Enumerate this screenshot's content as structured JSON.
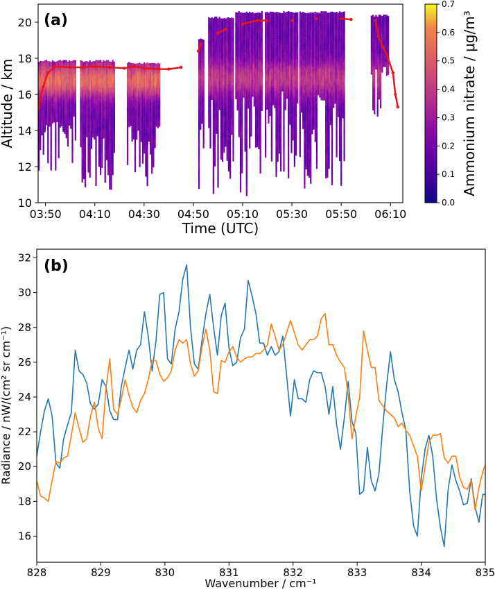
{
  "chart_data": [
    {
      "type": "heatmap",
      "panel_label": "(a)",
      "xlabel": "Time (UTC)",
      "ylabel": "Altitude / km",
      "colorbar_label": "Ammonium nitrate / μg/m³",
      "colormap": "plasma",
      "x_tick_labels": [
        "03:50",
        "04:10",
        "04:30",
        "04:50",
        "05:10",
        "05:30",
        "05:50",
        "06:10"
      ],
      "x_tick_minutes": [
        230,
        250,
        270,
        290,
        310,
        330,
        350,
        370
      ],
      "xlim_minutes": [
        227,
        375
      ],
      "ylim": [
        10,
        21
      ],
      "y_ticks": [
        10,
        12,
        14,
        16,
        18,
        20
      ],
      "colorbar_ticks": [
        0.0,
        0.1,
        0.2,
        0.3,
        0.4,
        0.5,
        0.6,
        0.7
      ],
      "colorbar_range": [
        0,
        0.7
      ],
      "flight_altitude_color": "#e8151b",
      "data_segments": [
        {
          "start": "03:47",
          "end": "04:02",
          "top_km": 17.8,
          "min_bottom_km": 11.8
        },
        {
          "start": "04:04",
          "end": "04:18",
          "top_km": 17.8,
          "min_bottom_km": 10.7
        },
        {
          "start": "04:23",
          "end": "04:36",
          "top_km": 17.7,
          "min_bottom_km": 10.2
        },
        {
          "start": "04:52",
          "end": "04:54",
          "top_km": 19.0,
          "min_bottom_km": 10.0
        },
        {
          "start": "04:56",
          "end": "05:06",
          "top_km": 20.2,
          "min_bottom_km": 10.5
        },
        {
          "start": "05:07",
          "end": "05:18",
          "top_km": 20.5,
          "min_bottom_km": 10.3
        },
        {
          "start": "05:19",
          "end": "05:32",
          "top_km": 20.5,
          "min_bottom_km": 11.0
        },
        {
          "start": "05:33",
          "end": "05:51",
          "top_km": 20.5,
          "min_bottom_km": 10.5
        },
        {
          "start": "06:02",
          "end": "06:09",
          "top_km": 20.3,
          "min_bottom_km": 14.5
        }
      ],
      "flight_altitude_km": [
        [
          227,
          15.2
        ],
        [
          229,
          16.4
        ],
        [
          231,
          17.2
        ],
        [
          234,
          17.55
        ],
        [
          240,
          17.5
        ],
        [
          245,
          17.5
        ],
        [
          250,
          17.55
        ],
        [
          256,
          17.5
        ],
        [
          262,
          17.45
        ],
        [
          266,
          17.55
        ],
        [
          270,
          17.45
        ],
        [
          276,
          17.4
        ],
        [
          280,
          17.4
        ],
        [
          285,
          17.5
        ],
        [
          292,
          18.4
        ],
        [
          293,
          18.8
        ],
        [
          300,
          19.4
        ],
        [
          303,
          19.6
        ],
        [
          310,
          19.9
        ],
        [
          316,
          20.1
        ],
        [
          320,
          20.1
        ],
        [
          330,
          20.1
        ],
        [
          340,
          20.2
        ],
        [
          350,
          20.2
        ],
        [
          354,
          20.15
        ],
        [
          364,
          20.1
        ],
        [
          365,
          19.2
        ],
        [
          367,
          18.6
        ],
        [
          369,
          18.0
        ],
        [
          371,
          17.2
        ],
        [
          372,
          16.0
        ],
        [
          373,
          15.3
        ]
      ]
    },
    {
      "type": "line",
      "panel_label": "(b)",
      "xlabel": "Wavenumber / cm⁻¹",
      "ylabel": "Radiance / nW/(cm² sr cm⁻¹)",
      "xlim": [
        828,
        835
      ],
      "ylim": [
        14.5,
        32.5
      ],
      "x_ticks": [
        828,
        829,
        830,
        831,
        832,
        833,
        834,
        835
      ],
      "y_ticks": [
        16,
        18,
        20,
        22,
        24,
        26,
        28,
        30,
        32
      ],
      "series": [
        {
          "color": "#1f77b4",
          "x": [
            828.0,
            828.06,
            828.12,
            828.18,
            828.24,
            828.3,
            828.36,
            828.42,
            828.48,
            828.54,
            828.6,
            828.66,
            828.72,
            828.78,
            828.84,
            828.9,
            828.96,
            829.02,
            829.08,
            829.14,
            829.2,
            829.26,
            829.32,
            829.38,
            829.44,
            829.5,
            829.56,
            829.62,
            829.68,
            829.74,
            829.8,
            829.86,
            829.92,
            829.98,
            830.04,
            830.1,
            830.16,
            830.22,
            830.28,
            830.34,
            830.4,
            830.46,
            830.52,
            830.58,
            830.64,
            830.7,
            830.76,
            830.82,
            830.88,
            830.94,
            831.0,
            831.06,
            831.12,
            831.18,
            831.24,
            831.3,
            831.36,
            831.42,
            831.48,
            831.54,
            831.6,
            831.66,
            831.72,
            831.78,
            831.84,
            831.9,
            831.96,
            832.02,
            832.08,
            832.14,
            832.2,
            832.26,
            832.32,
            832.38,
            832.44,
            832.5,
            832.56,
            832.62,
            832.68,
            832.74,
            832.8,
            832.86,
            832.92,
            832.98,
            833.04,
            833.1,
            833.16,
            833.22,
            833.28,
            833.34,
            833.4,
            833.46,
            833.52,
            833.58,
            833.64,
            833.7,
            833.76,
            833.82,
            833.88,
            833.94,
            834.0,
            834.06,
            834.12,
            834.18,
            834.24,
            834.3,
            834.36,
            834.42,
            834.48,
            834.54,
            834.6,
            834.66,
            834.72,
            834.78,
            834.84,
            834.9,
            834.96,
            835.0
          ],
          "y": [
            20.6,
            22.0,
            23.2,
            23.9,
            22.9,
            20.2,
            19.9,
            21.6,
            22.4,
            23.1,
            26.7,
            25.5,
            25.3,
            24.8,
            23.6,
            23.3,
            23.6,
            25.0,
            24.6,
            23.2,
            22.7,
            22.7,
            24.6,
            25.7,
            26.7,
            25.6,
            26.7,
            27.0,
            28.9,
            27.5,
            25.5,
            27.2,
            29.9,
            30.0,
            26.2,
            25.9,
            27.9,
            28.9,
            30.8,
            31.6,
            28.0,
            25.9,
            25.6,
            27.3,
            28.8,
            29.9,
            28.0,
            26.4,
            28.7,
            29.4,
            26.8,
            25.8,
            26.0,
            27.4,
            27.9,
            30.7,
            29.8,
            28.8,
            27.1,
            27.1,
            26.4,
            26.9,
            26.4,
            26.6,
            27.5,
            25.2,
            22.9,
            25.0,
            23.9,
            23.9,
            23.7,
            25.0,
            25.5,
            25.4,
            25.4,
            24.6,
            23.0,
            24.6,
            22.4,
            21.0,
            22.8,
            24.9,
            22.6,
            21.9,
            18.4,
            18.6,
            21.1,
            19.2,
            18.6,
            19.6,
            22.3,
            24.7,
            26.6,
            25.0,
            24.3,
            23.1,
            22.1,
            18.6,
            16.6,
            16.0,
            19.3,
            21.0,
            21.8,
            20.6,
            18.1,
            16.5,
            15.4,
            18.7,
            20.1,
            19.2,
            18.6,
            17.8,
            17.9,
            19.3,
            17.7,
            16.8,
            18.4,
            18.4
          ]
        },
        {
          "color": "#ff7f0e",
          "x": [
            828.0,
            828.06,
            828.12,
            828.18,
            828.24,
            828.3,
            828.36,
            828.42,
            828.48,
            828.54,
            828.6,
            828.66,
            828.72,
            828.78,
            828.84,
            828.9,
            828.96,
            829.02,
            829.08,
            829.14,
            829.2,
            829.26,
            829.32,
            829.38,
            829.44,
            829.5,
            829.56,
            829.62,
            829.68,
            829.74,
            829.8,
            829.86,
            829.92,
            829.98,
            830.04,
            830.1,
            830.16,
            830.22,
            830.28,
            830.34,
            830.4,
            830.46,
            830.52,
            830.58,
            830.64,
            830.7,
            830.76,
            830.82,
            830.88,
            830.94,
            831.0,
            831.06,
            831.12,
            831.18,
            831.24,
            831.3,
            831.36,
            831.42,
            831.48,
            831.54,
            831.6,
            831.66,
            831.72,
            831.78,
            831.84,
            831.9,
            831.96,
            832.02,
            832.08,
            832.14,
            832.2,
            832.26,
            832.32,
            832.38,
            832.44,
            832.5,
            832.56,
            832.62,
            832.68,
            832.74,
            832.8,
            832.86,
            832.92,
            832.98,
            833.04,
            833.1,
            833.16,
            833.22,
            833.28,
            833.34,
            833.4,
            833.46,
            833.52,
            833.58,
            833.64,
            833.7,
            833.76,
            833.82,
            833.88,
            833.94,
            834.0,
            834.06,
            834.12,
            834.18,
            834.24,
            834.3,
            834.36,
            834.42,
            834.48,
            834.54,
            834.6,
            834.66,
            834.72,
            834.78,
            834.84,
            834.9,
            834.96,
            835.0
          ],
          "y": [
            19.2,
            18.3,
            18.2,
            18.0,
            19.2,
            20.3,
            20.2,
            20.5,
            20.6,
            21.8,
            23.1,
            22.2,
            21.4,
            21.6,
            22.9,
            23.7,
            22.2,
            21.6,
            24.5,
            26.2,
            23.3,
            23.0,
            23.9,
            25.0,
            24.1,
            23.4,
            23.1,
            23.8,
            24.2,
            25.0,
            26.1,
            26.1,
            25.3,
            24.9,
            25.1,
            25.5,
            26.7,
            27.3,
            27.1,
            27.3,
            25.9,
            25.2,
            25.5,
            26.9,
            27.9,
            26.7,
            24.3,
            24.2,
            26.1,
            26.0,
            26.6,
            26.9,
            26.3,
            26.0,
            26.2,
            26.3,
            26.3,
            26.5,
            26.5,
            26.7,
            27.0,
            28.2,
            27.5,
            26.7,
            27.0,
            27.7,
            28.4,
            27.7,
            27.0,
            26.7,
            27.0,
            27.3,
            27.3,
            27.5,
            28.5,
            28.8,
            27.0,
            27.0,
            26.4,
            26.0,
            25.7,
            24.1,
            21.6,
            22.9,
            24.0,
            27.8,
            26.7,
            25.7,
            25.7,
            23.8,
            23.5,
            23.2,
            23.0,
            22.8,
            22.3,
            22.5,
            22.1,
            21.8,
            21.2,
            20.6,
            18.6,
            20.0,
            21.4,
            21.8,
            21.8,
            21.9,
            20.5,
            20.2,
            20.6,
            20.6,
            19.4,
            18.8,
            18.7,
            19.2,
            17.5,
            18.8,
            19.7,
            20.1
          ]
        }
      ]
    }
  ]
}
